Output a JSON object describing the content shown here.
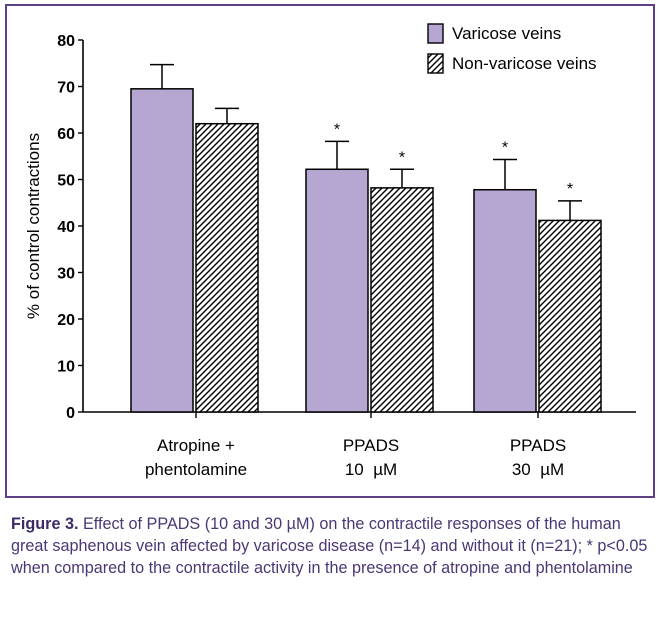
{
  "chart_data": {
    "type": "bar",
    "title": "",
    "xlabel": "",
    "ylabel": "% of control contractions",
    "ylim": [
      0,
      80
    ],
    "yticks": [
      0,
      10,
      20,
      30,
      40,
      50,
      60,
      70,
      80
    ],
    "categories": [
      [
        "Atropine +",
        "phentolamine"
      ],
      [
        "PPADS",
        "10  µM"
      ],
      [
        "PPADS",
        "30  µM"
      ]
    ],
    "series": [
      {
        "name": "Varicose veins",
        "fill": "#b5a6d2",
        "pattern": "solid",
        "values": [
          69.5,
          52.2,
          47.8
        ],
        "errors": [
          5.2,
          6.0,
          6.5
        ],
        "significance": [
          "",
          "*",
          "*"
        ]
      },
      {
        "name": "Non-varicose veins",
        "fill": "#ffffff",
        "pattern": "hatch",
        "values": [
          62.0,
          48.2,
          41.2
        ],
        "errors": [
          3.3,
          4.0,
          4.2
        ],
        "significance": [
          "",
          "*",
          "*"
        ]
      }
    ],
    "legend_position": "top-right",
    "grid": false
  },
  "caption": {
    "label": "Figure 3.",
    "text": " Effect of PPADS (10 and 30 µM) on the contractile responses of the human great saphenous vein affected by varicose disease (n=14) and without it (n=21); * p<0.05 when compared to the contractile activity in the presence of atropine and phentolamine"
  },
  "colors": {
    "frame": "#5d3f86",
    "caption": "#4a3774",
    "axis": "#000000"
  }
}
